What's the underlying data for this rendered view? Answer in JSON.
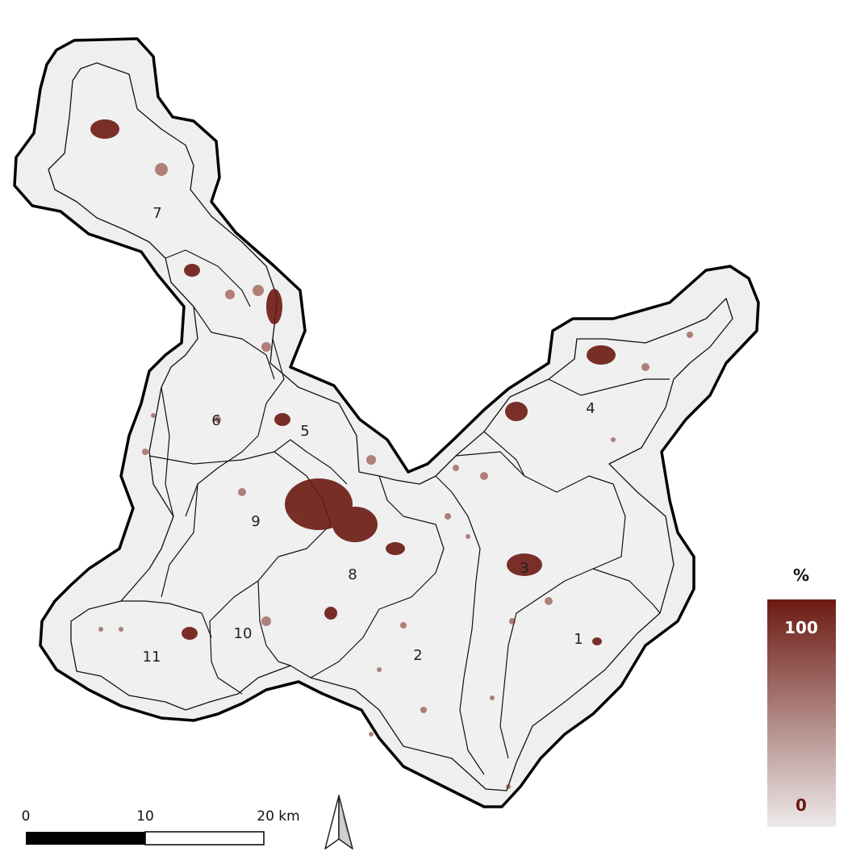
{
  "map": {
    "zones": [
      {
        "id": "1",
        "label": "1"
      },
      {
        "id": "2",
        "label": "2"
      },
      {
        "id": "3",
        "label": "3"
      },
      {
        "id": "4",
        "label": "4"
      },
      {
        "id": "5",
        "label": "5"
      },
      {
        "id": "6",
        "label": "6"
      },
      {
        "id": "7",
        "label": "7"
      },
      {
        "id": "8",
        "label": "8"
      },
      {
        "id": "9",
        "label": "9"
      },
      {
        "id": "10",
        "label": "10"
      },
      {
        "id": "11",
        "label": "11"
      }
    ],
    "colors": {
      "background": "#ffffff",
      "buffer": "#efefef",
      "boundary": "#000000",
      "urban_high": "#6b1a12",
      "urban_low": "#efe6e6"
    }
  },
  "legend": {
    "title": "%",
    "max_label": "100",
    "min_label": "0"
  },
  "scale_bar": {
    "tick_0": "0",
    "tick_1": "10",
    "tick_2": "20 km"
  },
  "north_arrow": {
    "icon": "north-arrow-icon"
  }
}
